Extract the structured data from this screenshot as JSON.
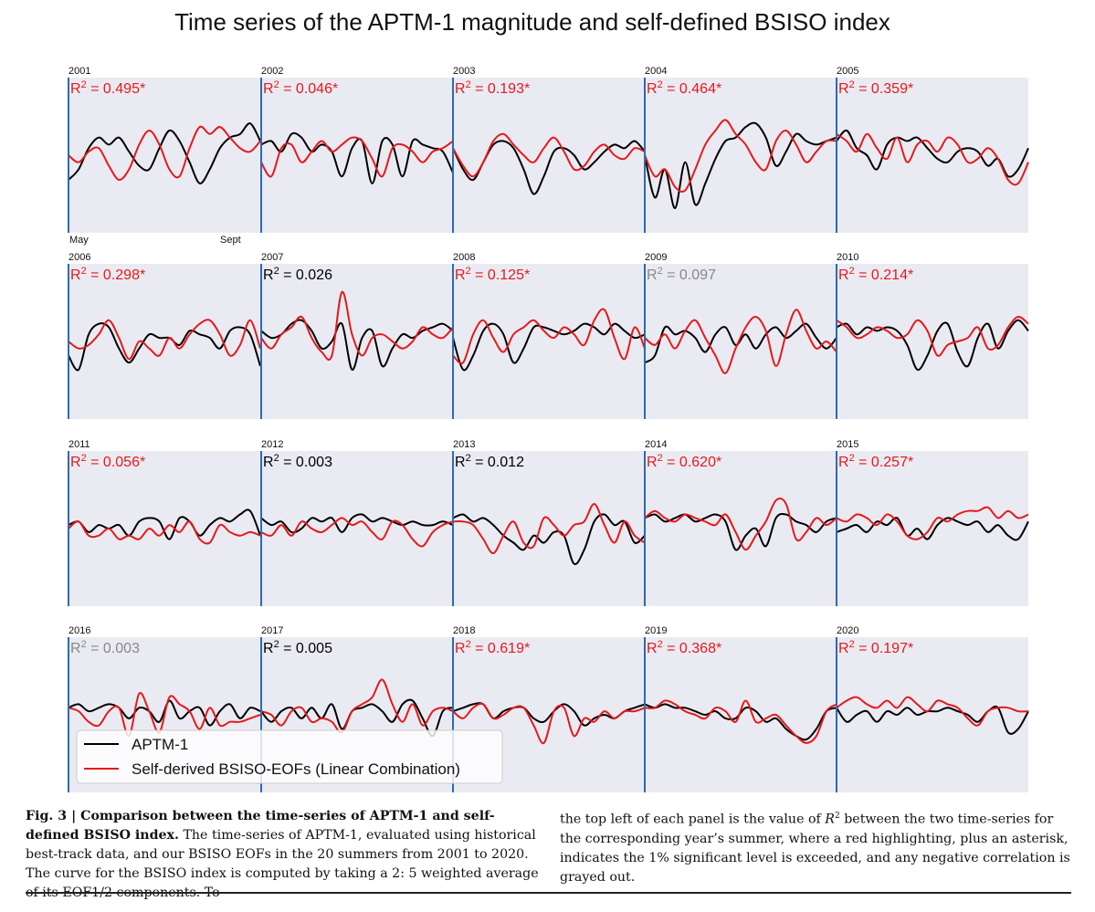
{
  "figure": {
    "title": "Time series of the APTM-1 magnitude and self-defined BSISO index",
    "month_start_label": "May",
    "month_end_label": "Sept",
    "legend": {
      "aptm": "APTM-1",
      "bsiso": "Self-derived BSISO-EOFs (Linear Combination)"
    },
    "colors": {
      "aptm": "#000000",
      "bsiso": "#e31a1c",
      "significant": "#e31a1c",
      "normal": "#000000",
      "negative": "#888888",
      "panel_bg": "#eaeaf2",
      "divider": "#2b6cb0"
    }
  },
  "chart_data": {
    "type": "line",
    "ylim": [
      -1.1,
      1.1
    ],
    "panels": [
      {
        "year": "2001",
        "r2": "0.495*",
        "status": "significant",
        "aptm": [
          -0.35,
          -0.2,
          0.1,
          0.25,
          0.15,
          0.25,
          0.05,
          -0.15,
          -0.2,
          0.1,
          0.35,
          0.2,
          -0.1,
          -0.4,
          -0.2,
          0.1,
          0.25,
          0.3,
          0.45,
          0.2
        ],
        "bsiso": [
          0,
          -0.1,
          0.05,
          0.1,
          -0.15,
          -0.35,
          -0.2,
          0.15,
          0.35,
          0.15,
          -0.2,
          -0.3,
          0.1,
          0.4,
          0.3,
          0.4,
          0.25,
          0.1,
          0.05,
          0.2
        ]
      },
      {
        "year": "2002",
        "r2": "0.046*",
        "status": "significant",
        "aptm": [
          0.15,
          0.2,
          0.05,
          0.3,
          0.25,
          0.05,
          0.15,
          0.05,
          -0.3,
          0.1,
          0.2,
          -0.4,
          0.2,
          0.15,
          -0.3,
          0.2,
          0.15,
          0.1,
          0.05,
          -0.25
        ],
        "bsiso": [
          -0.1,
          -0.3,
          0.1,
          0.15,
          -0.1,
          0.05,
          0.2,
          0.05,
          0.15,
          0.25,
          0.2,
          -0.05,
          -0.3,
          0.1,
          0.15,
          0.05,
          -0.1,
          0.05,
          0.1,
          0.2
        ]
      },
      {
        "year": "2003",
        "r2": "0.193*",
        "status": "significant",
        "aptm": [
          0.1,
          -0.2,
          -0.35,
          -0.1,
          0.15,
          0.2,
          0.1,
          -0.2,
          -0.55,
          -0.3,
          0.05,
          0.1,
          0,
          -0.2,
          -0.1,
          0.05,
          0.15,
          0.1,
          0.2,
          0.05
        ],
        "bsiso": [
          0.1,
          -0.1,
          -0.3,
          0.1,
          0.25,
          0.3,
          0.1,
          -0.05,
          0.15,
          0.2,
          0.1,
          0.1,
          0.2,
          0.05,
          -0.1,
          -0.15,
          -0.05,
          0.1,
          0.15,
          0.05
        ],
        "bsiso_override": [
          0.1,
          -0.15,
          -0.3,
          -0.1,
          0.2,
          0.3,
          0.15,
          0,
          -0.1,
          0.1,
          0.25,
          0.05,
          -0.2,
          -0.15,
          0.05,
          0.15,
          0,
          -0.05,
          0.1,
          0.05
        ]
      },
      {
        "year": "2004",
        "r2": "0.464*",
        "status": "significant",
        "aptm": [
          0,
          -0.6,
          -0.2,
          -0.75,
          -0.1,
          -0.7,
          -0.4,
          -0.05,
          0.2,
          0.25,
          0.4,
          0.45,
          0.25,
          -0.15,
          0.05,
          0.3,
          0.2,
          0.15,
          0.2,
          0.25
        ],
        "bsiso": [
          0,
          -0.3,
          -0.2,
          -0.45,
          -0.5,
          -0.2,
          0.15,
          0.35,
          0.5,
          0.3,
          0.15,
          -0.1,
          -0.2,
          0.2,
          0.35,
          0.15,
          -0.1,
          0.05,
          0.2,
          0.2
        ]
      },
      {
        "year": "2005",
        "r2": "0.359*",
        "status": "significant",
        "aptm": [
          0.2,
          0.35,
          0.1,
          0,
          -0.2,
          0.15,
          0.25,
          0.2,
          0.25,
          0.1,
          -0.05,
          -0.1,
          0.05,
          0.1,
          0.05,
          -0.15,
          -0.05,
          -0.3,
          -0.2,
          0.1
        ],
        "bsiso": [
          0.3,
          0.2,
          0.05,
          0.3,
          0.1,
          -0.05,
          0.25,
          -0.1,
          0.15,
          0.2,
          0.05,
          0.25,
          0.15,
          -0.1,
          -0.05,
          0.1,
          -0.05,
          -0.35,
          -0.4,
          -0.1
        ]
      },
      {
        "year": "2006",
        "r2": "0.298*",
        "status": "significant",
        "aptm": [
          -0.2,
          -0.4,
          0.1,
          0.25,
          0.2,
          -0.1,
          -0.3,
          -0.1,
          0.1,
          0.05,
          0.05,
          -0.05,
          0.15,
          0.1,
          0.05,
          -0.1,
          0.15,
          0.2,
          0.1,
          -0.35
        ],
        "bsiso": [
          0,
          -0.1,
          -0.05,
          0.1,
          0.3,
          0.05,
          -0.25,
          0,
          -0.1,
          -0.2,
          0.05,
          -0.1,
          0.1,
          0.25,
          0.3,
          0.1,
          -0.2,
          -0.05,
          0.3,
          -0.1
        ]
      },
      {
        "year": "2007",
        "r2": "0.026",
        "status": "normal",
        "aptm": [
          0.15,
          0.05,
          0.1,
          0.25,
          0.3,
          0.15,
          -0.1,
          0,
          0.25,
          -0.4,
          0.05,
          0.15,
          -0.35,
          -0.1,
          0.1,
          0.05,
          0.15,
          0.2,
          0.25,
          0.15
        ],
        "bsiso": [
          0.05,
          -0.1,
          0.1,
          0.2,
          0.35,
          0.05,
          -0.15,
          -0.2,
          0.7,
          0.1,
          -0.2,
          0.05,
          0.1,
          0,
          -0.1,
          0,
          0.2,
          0.1,
          0.05,
          0.2
        ]
      },
      {
        "year": "2008",
        "r2": "0.125*",
        "status": "significant",
        "aptm": [
          0.05,
          -0.4,
          -0.2,
          0.15,
          0.25,
          0.1,
          -0.3,
          -0.1,
          0.2,
          0.2,
          0.15,
          0.1,
          0.15,
          0.25,
          0.2,
          0.1,
          0.25,
          0.15,
          0.05,
          0.1
        ],
        "bsiso": [
          -0.2,
          -0.3,
          0.1,
          0.3,
          0.05,
          -0.15,
          0.1,
          0.2,
          0.3,
          0.15,
          0.05,
          0.2,
          0.1,
          -0.05,
          0.3,
          0.45,
          0.05,
          -0.25,
          0.2,
          -0.1
        ]
      },
      {
        "year": "2009",
        "r2": "0.097",
        "status": "negative",
        "aptm": [
          -0.3,
          -0.2,
          0.2,
          0.1,
          0.15,
          0.05,
          -0.15,
          0.1,
          0.2,
          -0.05,
          0.1,
          -0.1,
          0.1,
          0.2,
          0.05,
          0.15,
          0.25,
          0.05,
          -0.1,
          0.05
        ],
        "bsiso": [
          0.05,
          -0.05,
          0.1,
          -0.1,
          0.15,
          0.3,
          0.05,
          -0.2,
          -0.45,
          -0.1,
          0.2,
          0.35,
          0.15,
          -0.35,
          0.1,
          0.45,
          0.15,
          -0.1,
          0,
          -0.15
        ]
      },
      {
        "year": "2010",
        "r2": "0.214*",
        "status": "significant",
        "aptm": [
          0.2,
          0.25,
          0.1,
          0.2,
          0.15,
          0.2,
          0.15,
          -0.05,
          -0.4,
          -0.2,
          0.15,
          0.25,
          -0.15,
          -0.35,
          0.05,
          0.25,
          -0.1,
          0.15,
          0.3,
          0.15
        ],
        "bsiso": [
          0.3,
          0.2,
          0.05,
          0.1,
          0.2,
          0.15,
          0.05,
          0.1,
          0.3,
          0.15,
          -0.2,
          -0.05,
          0,
          0.05,
          0.2,
          -0.1,
          -0.05,
          0.2,
          0.35,
          0.25
        ]
      },
      {
        "year": "2011",
        "r2": "0.056*",
        "status": "significant",
        "aptm": [
          0.05,
          0.1,
          -0.05,
          0.05,
          0,
          0.05,
          -0.1,
          0.1,
          0.15,
          0.1,
          -0.15,
          0.15,
          0.1,
          -0.1,
          0.05,
          0.15,
          0.1,
          0.2,
          0.25,
          -0.1
        ],
        "bsiso": [
          0,
          0.1,
          -0.1,
          -0.1,
          0,
          -0.15,
          -0.1,
          -0.15,
          0,
          -0.1,
          0.05,
          -0.05,
          0.1,
          -0.15,
          -0.2,
          0.05,
          -0.05,
          -0.1,
          -0.05,
          -0.1
        ]
      },
      {
        "year": "2012",
        "r2": "0.003",
        "status": "normal",
        "aptm": [
          0.15,
          0.05,
          0.1,
          -0.05,
          0,
          0.15,
          0.1,
          0.15,
          -0.05,
          0.15,
          0.2,
          0.1,
          0.15,
          0.1,
          0.05,
          0.1,
          0.05,
          0.05,
          0.1,
          0.05
        ],
        "bsiso": [
          -0.05,
          -0.1,
          0.05,
          -0.1,
          0.1,
          0,
          -0.05,
          0.05,
          0.15,
          0.05,
          0.1,
          -0.05,
          -0.15,
          0.1,
          0.05,
          -0.15,
          -0.25,
          -0.05,
          0.05,
          0.1
        ]
      },
      {
        "year": "2013",
        "r2": "0.012",
        "status": "normal",
        "aptm": [
          0.15,
          0.2,
          0.1,
          0.15,
          0.05,
          -0.1,
          -0.2,
          -0.3,
          -0.1,
          -0.2,
          -0.05,
          -0.1,
          -0.5,
          -0.3,
          0.1,
          0.2,
          0.05,
          0.1,
          -0.2,
          -0.1
        ],
        "bsiso": [
          0.1,
          0.1,
          0.05,
          -0.15,
          -0.35,
          -0.1,
          0.1,
          -0.2,
          -0.25,
          0.15,
          0.05,
          -0.1,
          0.05,
          0.1,
          0.35,
          0.05,
          -0.2,
          0.1,
          -0.1,
          -0.2
        ]
      },
      {
        "year": "2014",
        "r2": "0.620*",
        "status": "significant",
        "aptm": [
          0.15,
          0.2,
          0.1,
          0.15,
          0.2,
          0.1,
          0.15,
          0.2,
          0.1,
          -0.3,
          -0.1,
          0,
          -0.25,
          0.15,
          0.2,
          0.1,
          0.05,
          -0.05,
          0.1,
          0.15
        ],
        "bsiso": [
          0.15,
          0.25,
          0.15,
          0.1,
          0.2,
          0.15,
          0.1,
          0.05,
          0.2,
          -0.05,
          -0.3,
          -0.1,
          0.1,
          0.4,
          0.35,
          -0.15,
          -0.05,
          0.15,
          0.05,
          0.15
        ]
      },
      {
        "year": "2015",
        "r2": "0.257*",
        "status": "significant",
        "aptm": [
          -0.05,
          0,
          0.05,
          -0.05,
          0.1,
          0.05,
          0.15,
          -0.1,
          0,
          -0.15,
          0.05,
          0.15,
          0.1,
          0.05,
          0.1,
          -0.05,
          0.05,
          -0.1,
          -0.15,
          0.1
        ],
        "bsiso": [
          0.15,
          0.1,
          0.2,
          0.15,
          0.05,
          0.2,
          0.1,
          -0.1,
          -0.15,
          -0.05,
          0.15,
          0.1,
          0.2,
          0.25,
          0.25,
          0.3,
          0.15,
          0.25,
          0.15,
          0.2
        ]
      },
      {
        "year": "2016",
        "r2": "0.003",
        "status": "negative",
        "aptm": [
          0.1,
          0.15,
          0.05,
          0.1,
          0.15,
          0.1,
          -0.05,
          0.1,
          0.05,
          -0.1,
          0.2,
          -0.05,
          0.05,
          0.1,
          -0.15,
          0.05,
          0.15,
          -0.05,
          0.1,
          0.05
        ],
        "bsiso": [
          0.1,
          0.05,
          -0.1,
          -0.15,
          0.05,
          0.1,
          -0.3,
          0.3,
          0.05,
          -0.25,
          0.25,
          0.15,
          0.05,
          -0.2,
          0.1,
          -0.15,
          -0.1,
          -0.1,
          -0.05,
          0
        ]
      },
      {
        "year": "2017",
        "r2": "0.005",
        "status": "normal",
        "aptm": [
          0.05,
          -0.1,
          0.05,
          0.1,
          -0.05,
          0.1,
          -0.05,
          0.15,
          -0.2,
          0.05,
          0.1,
          0.15,
          0.05,
          -0.1,
          0.15,
          0.2,
          -0.05,
          -0.3,
          0.05,
          0.1
        ],
        "bsiso": [
          0.05,
          0,
          -0.15,
          0.05,
          0.1,
          -0.1,
          -0.05,
          -0.1,
          -0.25,
          0.05,
          0.15,
          0.25,
          0.5,
          0.15,
          -0.1,
          0.15,
          -0.15,
          0.05,
          0.1,
          0.05
        ]
      },
      {
        "year": "2018",
        "r2": "0.619*",
        "status": "significant",
        "aptm": [
          0.05,
          0.1,
          0.15,
          0.15,
          -0.05,
          0.05,
          0.1,
          0.1,
          -0.05,
          -0.1,
          0.05,
          0.15,
          0.05,
          -0.15,
          -0.05,
          0,
          -0.05,
          0.05,
          0.1,
          0.15
        ],
        "bsiso": [
          0.05,
          -0.05,
          0.1,
          0.15,
          -0.05,
          0,
          0.1,
          0.1,
          -0.15,
          -0.4,
          0.05,
          0.1,
          -0.3,
          -0.05,
          -0.1,
          0.05,
          -0.05,
          0.05,
          0.05,
          0.1
        ]
      },
      {
        "year": "2019",
        "r2": "0.368*",
        "status": "significant",
        "aptm": [
          0.15,
          0.1,
          0.15,
          0.1,
          0.1,
          0.05,
          0,
          0.05,
          -0.05,
          -0.05,
          0.1,
          0.05,
          -0.1,
          -0.05,
          -0.2,
          -0.3,
          -0.35,
          -0.2,
          0.05,
          0.1
        ],
        "bsiso": [
          0.1,
          0.1,
          0.2,
          0.15,
          0.05,
          0,
          -0.05,
          0.1,
          0.05,
          -0.1,
          0.2,
          -0.1,
          -0.05,
          0,
          -0.15,
          -0.3,
          -0.4,
          -0.3,
          0.05,
          0.15
        ]
      },
      {
        "year": "2020",
        "r2": "0.197*",
        "status": "significant",
        "aptm": [
          0.1,
          -0.1,
          0,
          0.05,
          -0.1,
          0.05,
          0,
          0.1,
          0,
          0.05,
          0.05,
          0.1,
          0.05,
          0,
          -0.1,
          0.05,
          0.1,
          -0.25,
          -0.2,
          0.05
        ],
        "bsiso": [
          0.1,
          0.2,
          0.25,
          0.15,
          0.1,
          0.2,
          0.1,
          0.25,
          0.15,
          0.05,
          0.2,
          0.15,
          0.1,
          -0.05,
          -0.15,
          0.05,
          0.1,
          0.1,
          0.05,
          0.05
        ]
      }
    ]
  },
  "caption": {
    "left_bold": "Fig. 3 | Comparison between the time-series of APTM-1 and self-defined BSISO index.",
    "left_rest": " The time-series of APTM-1, evaluated using historical best-track data, and our BSISO EOFs in the 20 summers from 2001 to 2020. The curve for the BSISO index is computed by taking a 2: 5 weighted average of its EOF1/2 components. To",
    "right_a": "the top left of each panel is the value of ",
    "right_r": "R",
    "right_sup": "2",
    "right_b": " between the two time-series for the corresponding year’s summer, where a red highlighting, plus an asterisk, indicates the 1% significant level is exceeded, and any negative correlation is grayed out."
  }
}
